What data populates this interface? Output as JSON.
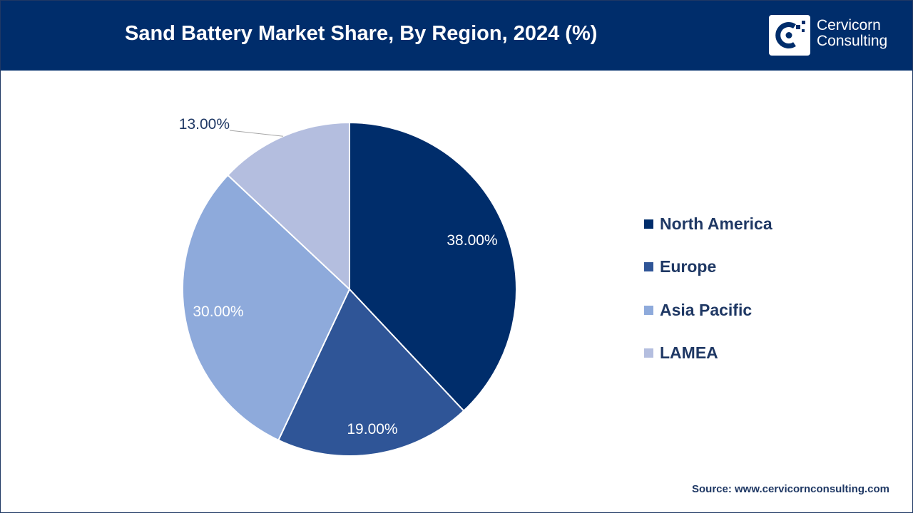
{
  "header": {
    "title": "Sand Battery Market Share, By Region, 2024 (%)",
    "logo_line1": "Cervicorn",
    "logo_line2": "Consulting",
    "logo_icon": "cervicorn-logo-icon"
  },
  "chart_data": {
    "type": "pie",
    "title": "Sand Battery Market Share, By Region, 2024 (%)",
    "categories": [
      "North America",
      "Europe",
      "Asia Pacific",
      "LAMEA"
    ],
    "values": [
      38.0,
      19.0,
      30.0,
      13.0
    ],
    "data_labels": [
      "38.00%",
      "19.00%",
      "30.00%",
      "13.00%"
    ],
    "colors": [
      "#002d6b",
      "#2f5597",
      "#8eaadb",
      "#b4bedf"
    ],
    "legend_position": "right",
    "start_angle": "12 o'clock",
    "direction": "clockwise"
  },
  "legend": {
    "items": [
      {
        "label": "North America",
        "color": "#002d6b"
      },
      {
        "label": "Europe",
        "color": "#2f5597"
      },
      {
        "label": "Asia Pacific",
        "color": "#8eaadb"
      },
      {
        "label": "LAMEA",
        "color": "#b4bedf"
      }
    ]
  },
  "footer": {
    "source": "Source: www.cervicornconsulting.com"
  },
  "colors": {
    "header_bg": "#002d6b",
    "text_dark": "#1f3864",
    "label_light": "#ffffff"
  }
}
